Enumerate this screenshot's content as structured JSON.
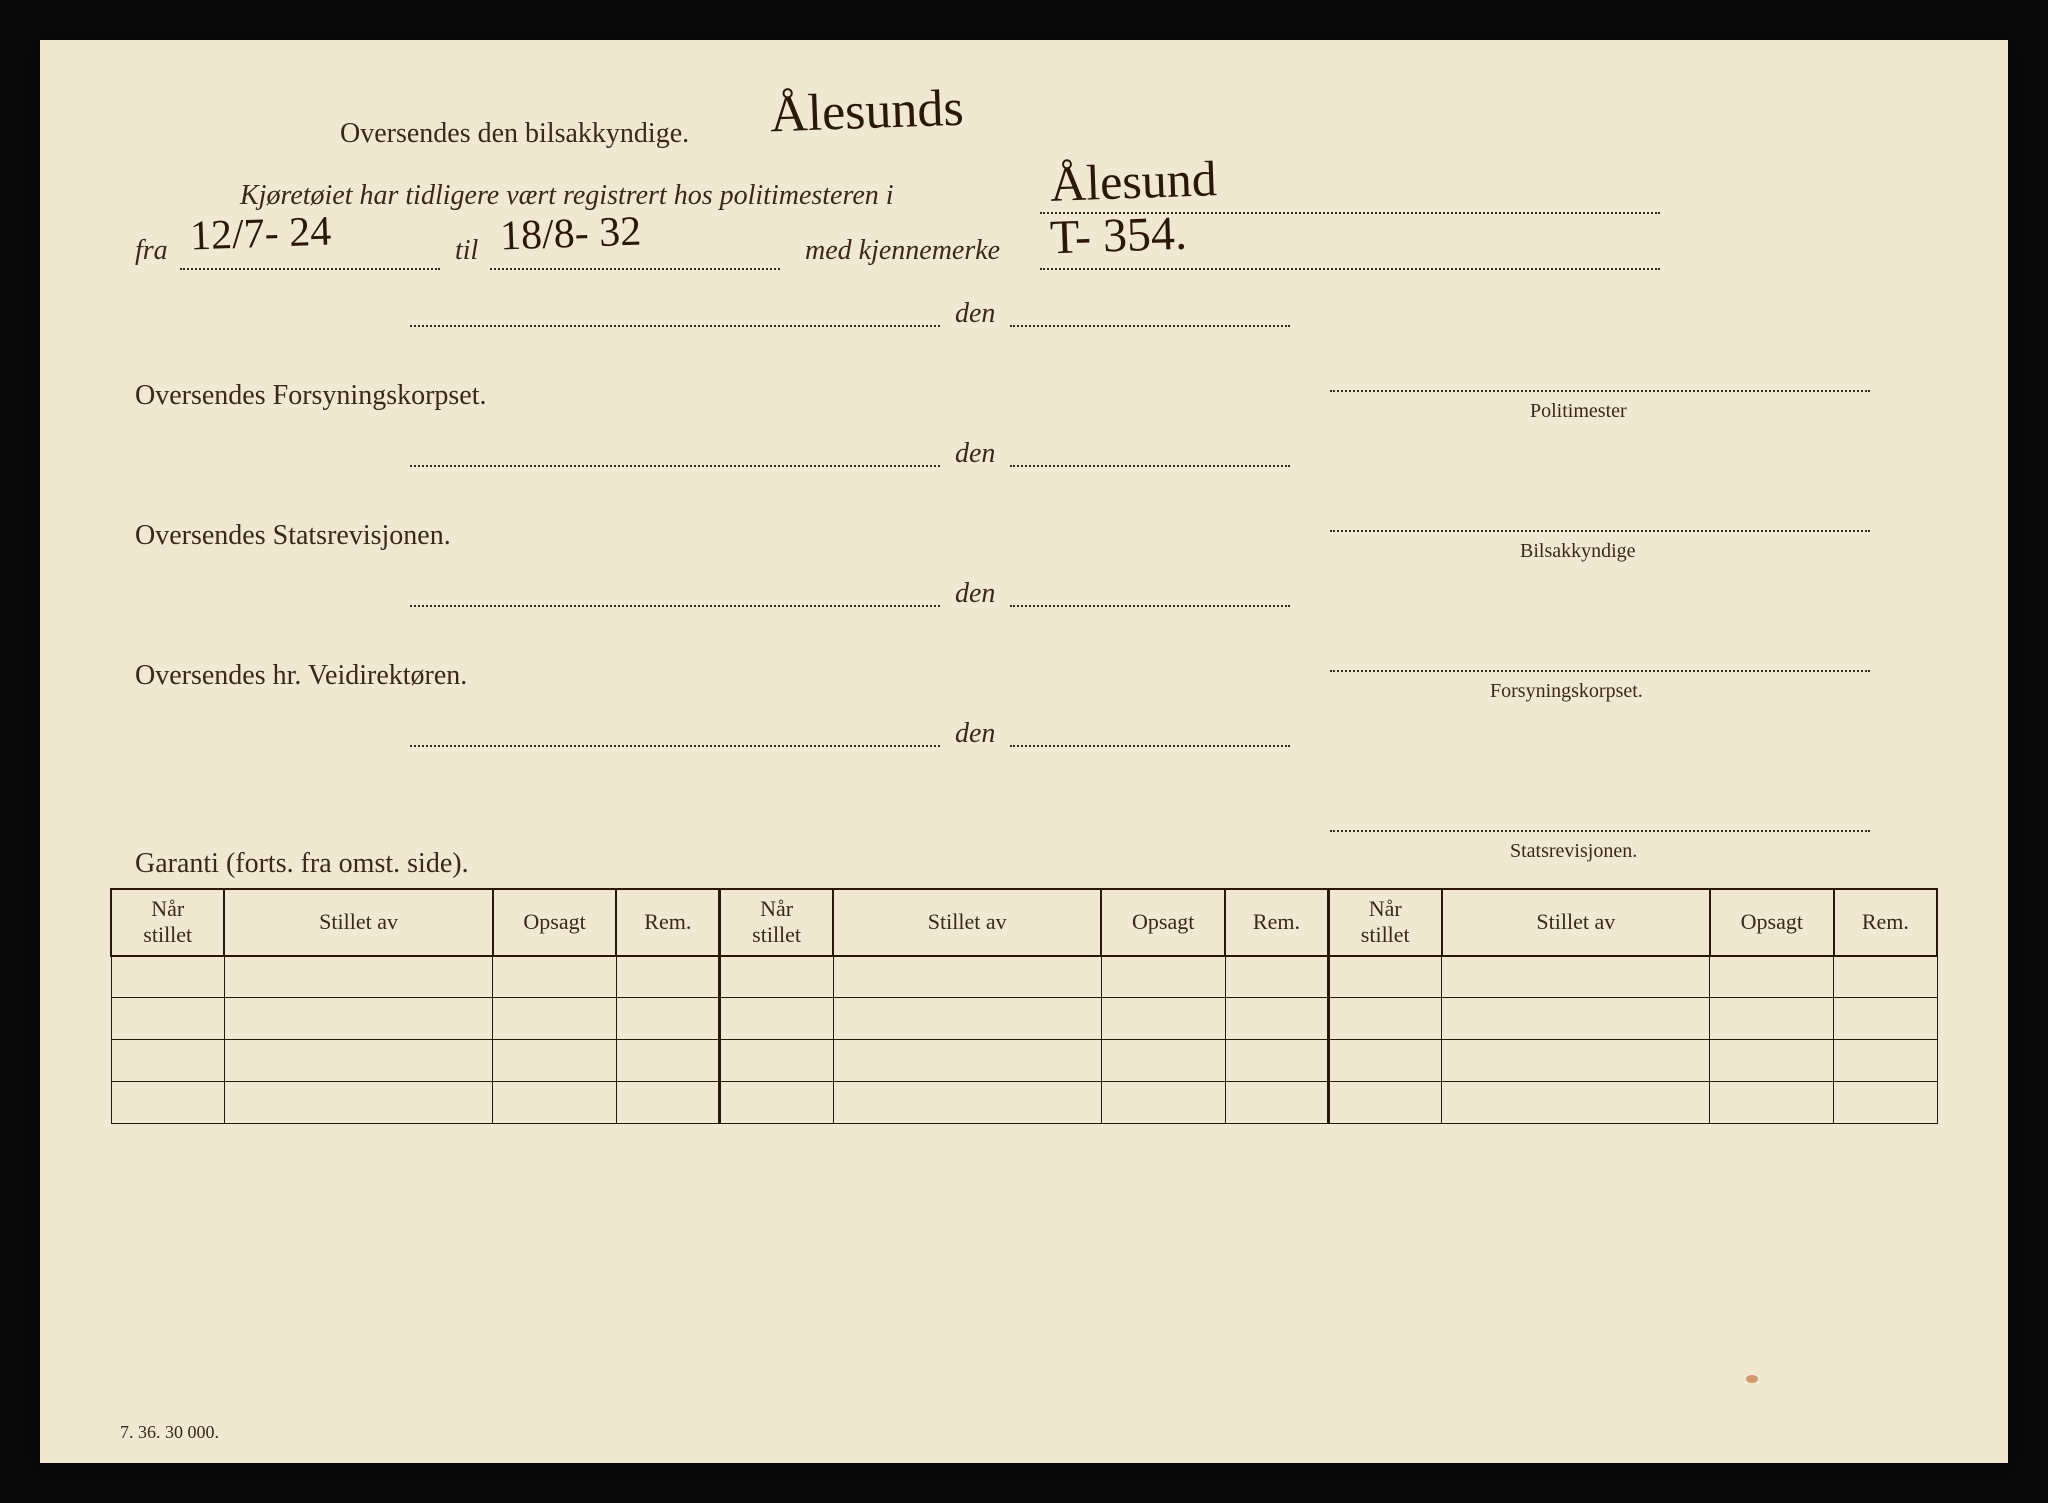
{
  "header": {
    "line1_prefix": "Oversendes den bilsakkyndige.",
    "line1_handwritten": "Ålesunds",
    "line2_prefix": "Kjøretøiet har tidligere vært registrert hos politimesteren i",
    "line2_handwritten": "Ålesund",
    "line3_fra": "fra",
    "line3_fra_value": "12/7- 24",
    "line3_til": "til",
    "line3_til_value": "18/8- 32",
    "line3_med": "med kjennemerke",
    "line3_merke_value": "T- 354."
  },
  "sections": [
    {
      "label": "Oversendes Forsyningskorpset.",
      "den": "den",
      "role": "Politimester"
    },
    {
      "label": "Oversendes Statsrevisjonen.",
      "den": "den",
      "role": "Bilsakkyndige"
    },
    {
      "label": "Oversendes hr. Veidirektøren.",
      "den": "den",
      "role": "Forsyningskorpset."
    },
    {
      "label": "",
      "den": "den",
      "role": "Statsrevisjonen."
    }
  ],
  "garanti_label": "Garanti (forts. fra omst. side).",
  "table": {
    "columns": [
      "Når\nstillet",
      "Stillet av",
      "Opsagt",
      "Rem.",
      "Når\nstillet",
      "Stillet av",
      "Opsagt",
      "Rem.",
      "Når\nstillet",
      "Stillet av",
      "Opsagt",
      "Rem."
    ],
    "row_count": 4
  },
  "footer_code": "7. 36.  30 000.",
  "colors": {
    "page_bg": "#f0e8d0",
    "text": "#3a2818",
    "ink": "#2a1808",
    "outer_bg": "#0a0a0a"
  },
  "typography": {
    "body_fontsize": 28,
    "handwriting_fontsize": 42,
    "small_label_fontsize": 20,
    "table_header_fontsize": 22
  }
}
